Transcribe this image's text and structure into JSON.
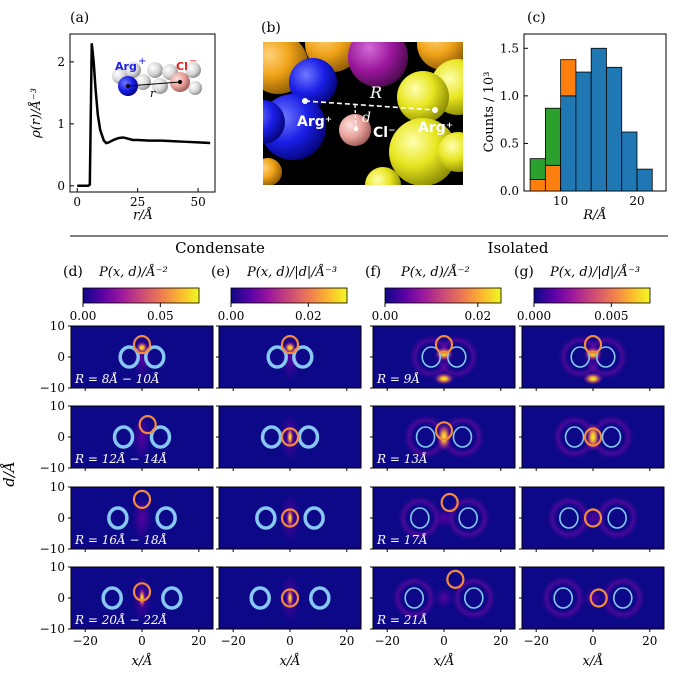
{
  "panels": {
    "a": {
      "label": "(a)",
      "xlabel": "r/Å",
      "ylabel": "ρ(r)/Å⁻³",
      "inset": {
        "arg_label": "Arg",
        "arg_charge": "+",
        "cl_label": "Cl",
        "cl_charge": "−",
        "r_label": "r"
      }
    },
    "b": {
      "label": "(b)",
      "R_label": "R",
      "d_label": "d",
      "arg_left": "Arg⁺",
      "arg_right": "Arg⁺",
      "cl_label": "Cl⁻"
    },
    "c": {
      "label": "(c)"
    },
    "d": {
      "label": "(d)",
      "title": "P(x, d)/Å⁻²"
    },
    "e": {
      "label": "(e)",
      "title": "P(x, d)/|d|/Å⁻³"
    },
    "f": {
      "label": "(f)",
      "title": "P(x, d)/Å⁻²"
    },
    "g": {
      "label": "(g)",
      "title": "P(x, d)/|d|/Å⁻³"
    }
  },
  "groups": {
    "condensate": "Condensate",
    "isolated": "Isolated"
  },
  "heatmap_axes": {
    "xlabel": "x/Å",
    "ylabel": "d/Å"
  },
  "colors": {
    "colormap": [
      "#0d0887",
      "#5c01a6",
      "#9c179e",
      "#cc4778",
      "#ed7953",
      "#fdb42f",
      "#f0f921"
    ],
    "arg_ring": "#87c8f2",
    "cl_ring": "#f58a3c"
  },
  "chart_data": [
    {
      "type": "line",
      "panel": "a",
      "title": "",
      "xlabel": "r/Å",
      "ylabel": "ρ(r)/Å⁻³",
      "xlim": [
        -3,
        57
      ],
      "ylim": [
        -0.1,
        2.45
      ],
      "xticks": [
        0,
        25,
        50
      ],
      "yticks": [
        0,
        1,
        2
      ],
      "x": [
        0,
        4.5,
        5.2,
        6.0,
        6.8,
        7.6,
        8.5,
        9.5,
        11,
        12,
        13,
        14,
        15,
        17,
        19,
        21,
        23,
        25,
        30,
        35,
        40,
        45,
        50,
        55
      ],
      "y": [
        0.0,
        0.0,
        0.02,
        2.3,
        2.0,
        1.55,
        1.15,
        0.9,
        0.73,
        0.69,
        0.7,
        0.72,
        0.74,
        0.77,
        0.78,
        0.76,
        0.74,
        0.74,
        0.73,
        0.73,
        0.72,
        0.71,
        0.7,
        0.69
      ]
    },
    {
      "type": "bar",
      "panel": "c",
      "stacked": true,
      "xlabel": "R/Å",
      "ylabel": "Counts / 10³",
      "xlim": [
        5.2,
        23.8
      ],
      "ylim": [
        0,
        1.65
      ],
      "xticks": [
        10,
        20
      ],
      "yticks": [
        0.0,
        0.5,
        1.0,
        1.5
      ],
      "bin_edges": [
        6,
        8,
        10,
        12,
        14,
        16,
        18,
        20,
        22
      ],
      "series": [
        {
          "name": "blue",
          "color": "#1f77b4",
          "values": [
            0,
            0,
            1.0,
            1.25,
            1.5,
            1.3,
            0.62,
            0.23
          ]
        },
        {
          "name": "orange",
          "color": "#ff7f0e",
          "values": [
            0.12,
            0.27,
            0.38,
            0.0,
            0,
            0,
            0,
            0
          ]
        },
        {
          "name": "green",
          "color": "#2ca02c",
          "values": [
            0.22,
            0.6,
            0.0,
            0.0,
            0,
            0,
            0,
            0
          ]
        }
      ],
      "bar_totals": [
        0.34,
        0.87,
        1.38,
        1.25,
        1.5,
        1.3,
        0.62,
        0.23
      ]
    },
    {
      "type": "heatmap",
      "panels": [
        "d",
        "e",
        "f",
        "g"
      ],
      "xlabel": "x/Å",
      "ylabel": "d/Å",
      "xlim": [
        -25,
        25
      ],
      "ylim": [
        -10,
        10
      ],
      "xticks": [
        -20,
        0,
        20
      ],
      "yticks": [
        -10,
        0,
        10
      ],
      "colorbars": {
        "d": {
          "ticks": [
            "0.00",
            "0.05"
          ],
          "vmin": 0,
          "vmax": 0.075
        },
        "e": {
          "ticks": [
            "0.00",
            "0.02"
          ],
          "vmin": 0,
          "vmax": 0.03
        },
        "f": {
          "ticks": [
            "0.00",
            "0.02"
          ],
          "vmin": 0,
          "vmax": 0.025
        },
        "g": {
          "ticks": [
            "0.000",
            "0.005"
          ],
          "vmin": 0,
          "vmax": 0.0075
        }
      },
      "rows": [
        {
          "condensate_label": "R = 8Å − 10Å",
          "isolated_label": "R = 9Å"
        },
        {
          "condensate_label": "R = 12Å − 14Å",
          "isolated_label": "R = 13Å"
        },
        {
          "condensate_label": "R = 16Å − 18Å",
          "isolated_label": "R = 17Å"
        },
        {
          "condensate_label": "R = 20Å − 22Å",
          "isolated_label": "R = 21Å"
        }
      ]
    }
  ]
}
